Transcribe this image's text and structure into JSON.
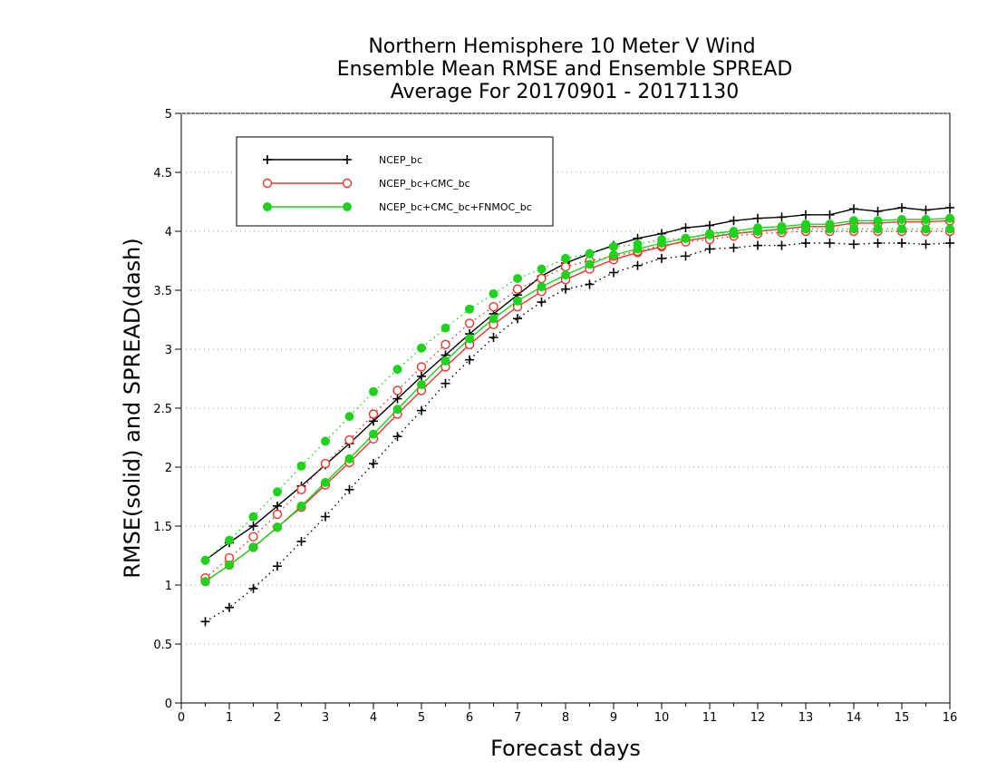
{
  "chart_data": {
    "type": "line",
    "title": [
      "Northern Hemisphere 10 Meter V Wind",
      "Ensemble Mean RMSE and Ensemble SPREAD",
      "Average For 20170901 - 20171130"
    ],
    "xlabel": "Forecast days",
    "ylabel": "RMSE(solid) and SPREAD(dash)",
    "xlim": [
      0,
      16
    ],
    "ylim": [
      0,
      5
    ],
    "xticks": [
      0,
      1,
      2,
      3,
      4,
      5,
      6,
      7,
      8,
      9,
      10,
      11,
      12,
      13,
      14,
      15,
      16
    ],
    "yticks": [
      0,
      0.5,
      1,
      1.5,
      2,
      2.5,
      3,
      3.5,
      4,
      4.5,
      5
    ],
    "grid": "horizontal dotted",
    "legend_position": "top-left",
    "x": [
      0.5,
      1,
      1.5,
      2,
      2.5,
      3,
      3.5,
      4,
      4.5,
      5,
      5.5,
      6,
      6.5,
      7,
      7.5,
      8,
      8.5,
      9,
      9.5,
      10,
      10.5,
      11,
      11.5,
      12,
      12.5,
      13,
      13.5,
      14,
      14.5,
      15,
      15.5,
      16
    ],
    "series": [
      {
        "name": "NCEP_bc",
        "color": "#000000",
        "marker": "plus",
        "rmse": [
          1.21,
          1.36,
          1.5,
          1.67,
          1.84,
          2.02,
          2.2,
          2.39,
          2.58,
          2.77,
          2.95,
          3.13,
          3.3,
          3.46,
          3.62,
          3.73,
          3.81,
          3.88,
          3.94,
          3.98,
          4.03,
          4.05,
          4.09,
          4.11,
          4.12,
          4.14,
          4.14,
          4.19,
          4.17,
          4.2,
          4.18,
          4.2
        ],
        "spread": [
          0.69,
          0.81,
          0.97,
          1.16,
          1.37,
          1.58,
          1.81,
          2.03,
          2.26,
          2.48,
          2.71,
          2.91,
          3.1,
          3.26,
          3.4,
          3.51,
          3.55,
          3.65,
          3.71,
          3.77,
          3.79,
          3.85,
          3.86,
          3.88,
          3.88,
          3.9,
          3.9,
          3.89,
          3.9,
          3.9,
          3.89,
          3.9
        ]
      },
      {
        "name": "NCEP_bc+CMC_bc",
        "color": "#e8352c",
        "marker": "open-circle",
        "rmse": [
          1.03,
          1.17,
          1.32,
          1.49,
          1.66,
          1.85,
          2.04,
          2.24,
          2.45,
          2.65,
          2.85,
          3.04,
          3.21,
          3.36,
          3.49,
          3.59,
          3.68,
          3.76,
          3.82,
          3.87,
          3.92,
          3.95,
          3.98,
          4.0,
          4.02,
          4.04,
          4.04,
          4.07,
          4.07,
          4.08,
          4.08,
          4.09
        ],
        "spread": [
          1.06,
          1.23,
          1.41,
          1.6,
          1.81,
          2.03,
          2.23,
          2.45,
          2.65,
          2.85,
          3.04,
          3.22,
          3.36,
          3.51,
          3.6,
          3.7,
          3.75,
          3.79,
          3.83,
          3.88,
          3.91,
          3.93,
          3.96,
          3.98,
          3.99,
          4.0,
          4.0,
          4.0,
          4.0,
          4.0,
          4.0,
          4.0
        ]
      },
      {
        "name": "NCEP_bc+CMC_bc+FNMOC_bc",
        "color": "#1ed21e",
        "marker": "filled-circle",
        "rmse": [
          1.03,
          1.17,
          1.32,
          1.49,
          1.67,
          1.87,
          2.07,
          2.28,
          2.49,
          2.7,
          2.9,
          3.09,
          3.26,
          3.41,
          3.53,
          3.63,
          3.72,
          3.8,
          3.85,
          3.9,
          3.94,
          3.98,
          4.0,
          4.03,
          4.04,
          4.06,
          4.06,
          4.09,
          4.09,
          4.1,
          4.1,
          4.11
        ],
        "spread": [
          1.21,
          1.38,
          1.58,
          1.79,
          2.01,
          2.22,
          2.43,
          2.64,
          2.83,
          3.01,
          3.18,
          3.34,
          3.47,
          3.6,
          3.68,
          3.77,
          3.81,
          3.87,
          3.89,
          3.93,
          3.94,
          3.97,
          3.98,
          4.0,
          4.01,
          4.02,
          4.02,
          4.02,
          4.02,
          4.02,
          4.02,
          4.02
        ]
      }
    ]
  }
}
